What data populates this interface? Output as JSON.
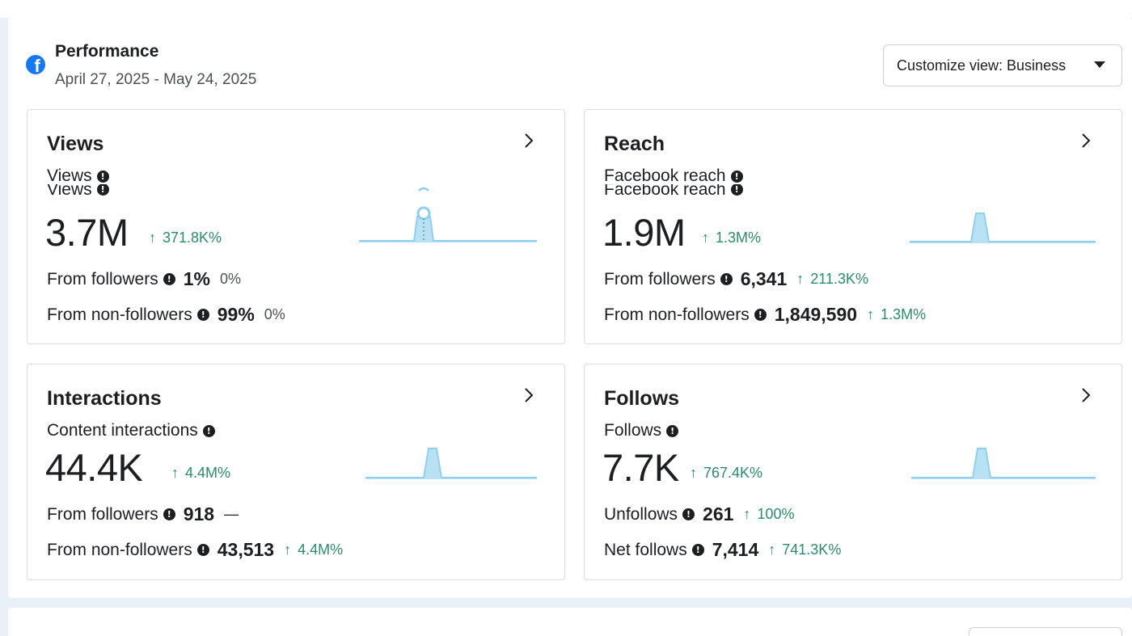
{
  "header": {
    "title": "Performance",
    "date_range": "April 27, 2025 - May 24, 2025",
    "customize_label": "Customize view: Business",
    "logo_icon": "facebook-logo-icon"
  },
  "colors": {
    "accent_blue": "#1877f2",
    "positive_green": "#2a8c6a",
    "sparkline": "#8fd0ef"
  },
  "cards": [
    {
      "title": "Views",
      "metric_label": "Views",
      "value": "3.7M",
      "change": "371.8K%",
      "rows": [
        {
          "label": "From followers",
          "value": "1%",
          "change": "0%",
          "trend": "neutral"
        },
        {
          "label": "From non-followers",
          "value": "99%",
          "change": "0%",
          "trend": "neutral"
        }
      ]
    },
    {
      "title": "Reach",
      "metric_label": "Facebook reach",
      "value": "1.9M",
      "change": "1.3M%",
      "rows": [
        {
          "label": "From followers",
          "value": "6,341",
          "change": "211.3K%",
          "trend": "up"
        },
        {
          "label": "From non-followers",
          "value": "1,849,590",
          "change": "1.3M%",
          "trend": "up"
        }
      ]
    },
    {
      "title": "Interactions",
      "metric_label": "Content interactions",
      "value": "44.4K",
      "change": "4.4M%",
      "rows": [
        {
          "label": "From followers",
          "value": "918",
          "change": "—",
          "trend": "neutral"
        },
        {
          "label": "From non-followers",
          "value": "43,513",
          "change": "4.4M%",
          "trend": "up"
        }
      ]
    },
    {
      "title": "Follows",
      "metric_label": "Follows",
      "value": "7.7K",
      "change": "767.4K%",
      "rows": [
        {
          "label": "Unfollows",
          "value": "261",
          "change": "100%",
          "trend": "up"
        },
        {
          "label": "Net follows",
          "value": "7,414",
          "change": "741.3K%",
          "trend": "up"
        }
      ]
    }
  ]
}
